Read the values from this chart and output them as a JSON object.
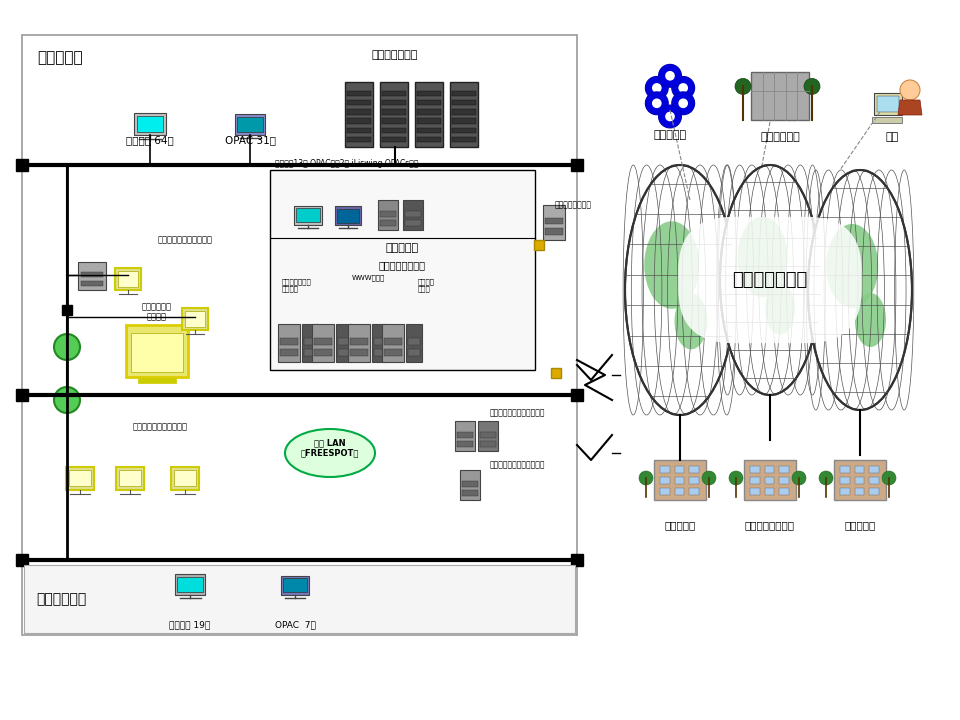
{
  "chuo_label": "中央図書館",
  "nakanoshima_label": "中之峳図書館",
  "internet_label": "インターネット",
  "label_gyomu64": "業務端末 64台",
  "label_opac31": "OPAC 31台",
  "label_gyomuserver": "業務系サーバー",
  "label_shokuin_inet": "職員インターネット端末",
  "label_jidou": "児童文学館",
  "label_gyomu13": "業務端末13台 OPAC端末2台 iLiswing OPACsーバ",
  "label_joho": "情報提供システム",
  "label_shokusho": "食重書システム\nサーバ等",
  "label_www": "WWWサーバ",
  "label_mokuroku": "目録検索\nサーバ",
  "label_firewall": "ファイアウォール",
  "label_wireless": "無線 LAN\n（FREESPOT）",
  "label_chokokosei": "超高精細画像\n表示装置",
  "label_shokuin_inet2": "職員インターネット端末",
  "label_riyousha1": "利用者用インタネット端末",
  "label_riyousha2": "利用者用インタネット端末",
  "label_gyomu19": "業務端末 19台",
  "label_opac7": "OPAC  7台",
  "label_fukanren": "府関連機関",
  "label_shichoson": "市町村図書館",
  "label_fumin": "府民",
  "label_kokkai": "国会図書館",
  "label_johogaku": "国立情報学研究所",
  "label_daigaku": "大学図書館"
}
